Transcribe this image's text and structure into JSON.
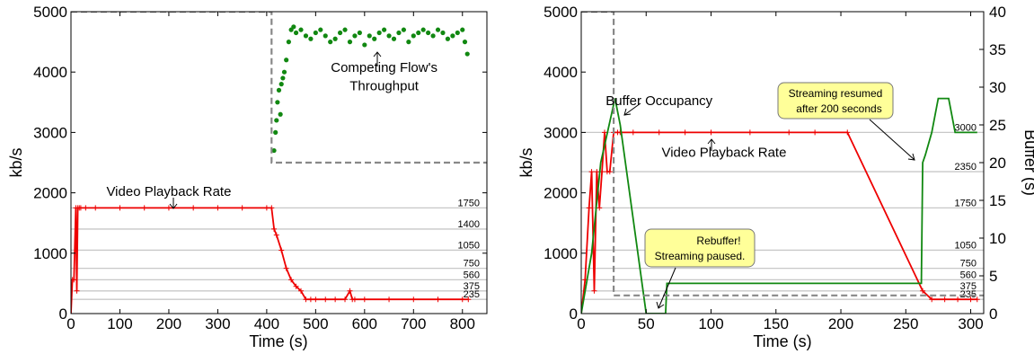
{
  "chart_data": [
    {
      "type": "line",
      "xlabel": "Time (s)",
      "ylabel": "kb/s",
      "xlim": [
        0,
        850
      ],
      "ylim": [
        0,
        5000
      ],
      "xticks": [
        0,
        100,
        200,
        300,
        400,
        500,
        600,
        700,
        800
      ],
      "yticks": [
        0,
        1000,
        2000,
        3000,
        4000,
        5000
      ],
      "rate_levels": [
        235,
        375,
        560,
        750,
        1050,
        1400,
        1750
      ],
      "rate_level_labels": [
        "235",
        "375",
        "560",
        "750",
        "1050",
        "1400",
        "1750"
      ],
      "grid": false,
      "series": [
        {
          "role": "video-playback-rate",
          "color": "#ee0000",
          "marker": "plus",
          "x": [
            0,
            3,
            6,
            10,
            12,
            14,
            17,
            20,
            30,
            50,
            100,
            150,
            200,
            250,
            300,
            350,
            400,
            410,
            415,
            420,
            430,
            440,
            450,
            460,
            470,
            480,
            490,
            500,
            520,
            540,
            560,
            570,
            575,
            580,
            600,
            650,
            700,
            750,
            800,
            812
          ],
          "values": [
            0,
            560,
            560,
            1750,
            375,
            1750,
            1750,
            1750,
            1750,
            1750,
            1750,
            1750,
            1750,
            1750,
            1750,
            1750,
            1750,
            1750,
            1400,
            1300,
            1050,
            750,
            560,
            450,
            375,
            235,
            235,
            235,
            235,
            235,
            235,
            375,
            235,
            235,
            235,
            235,
            235,
            235,
            235,
            235
          ]
        },
        {
          "role": "competing-flow-throughput",
          "color": "#118811",
          "marker": "dot",
          "x": [
            415,
            418,
            420,
            422,
            425,
            428,
            430,
            433,
            436,
            440,
            445,
            450,
            455,
            460,
            470,
            480,
            490,
            500,
            510,
            520,
            530,
            540,
            550,
            560,
            570,
            580,
            590,
            600,
            610,
            620,
            630,
            640,
            650,
            660,
            670,
            680,
            690,
            700,
            710,
            720,
            730,
            740,
            750,
            760,
            770,
            780,
            790,
            800,
            805,
            810
          ],
          "values": [
            2700,
            3000,
            3200,
            3500,
            3700,
            3300,
            3800,
            3900,
            4000,
            4200,
            4500,
            4700,
            4750,
            4650,
            4700,
            4600,
            4550,
            4650,
            4700,
            4600,
            4500,
            4550,
            4650,
            4700,
            4500,
            4600,
            4650,
            4450,
            4600,
            4550,
            4650,
            4700,
            4600,
            4550,
            4650,
            4700,
            4500,
            4600,
            4650,
            4700,
            4650,
            4600,
            4700,
            4650,
            4550,
            4600,
            4650,
            4700,
            4500,
            4300
          ]
        },
        {
          "role": "reference-dashed",
          "color": "#888888",
          "style": "dashed",
          "x": [
            0,
            410,
            410,
            850
          ],
          "values": [
            5000,
            5000,
            2500,
            2500
          ]
        }
      ],
      "annotations": [
        {
          "text": "Video Playback Rate",
          "x": 200,
          "y": 1950
        },
        {
          "text": "Competing Flow's",
          "x": 640,
          "y": 4000
        },
        {
          "text": "Throughput",
          "x": 640,
          "y": 3700
        }
      ]
    },
    {
      "type": "line",
      "xlabel": "Time (s)",
      "ylabel": "kb/s",
      "y2label": "Buffer (s)",
      "xlim": [
        0,
        310
      ],
      "ylim": [
        0,
        5000
      ],
      "y2lim": [
        0,
        40
      ],
      "xticks": [
        0,
        50,
        100,
        150,
        200,
        250,
        300
      ],
      "yticks": [
        0,
        1000,
        2000,
        3000,
        4000,
        5000
      ],
      "y2ticks": [
        0,
        5,
        10,
        15,
        20,
        25,
        30,
        35,
        40
      ],
      "rate_levels": [
        235,
        375,
        560,
        750,
        1050,
        1750,
        2350,
        3000
      ],
      "rate_level_labels": [
        "235",
        "375",
        "560",
        "750",
        "1050",
        "1750",
        "2350",
        "3000"
      ],
      "grid": false,
      "series": [
        {
          "role": "video-playback-rate",
          "color": "#ee0000",
          "marker": "plus",
          "axis": "left",
          "x": [
            0,
            3,
            6,
            8,
            10,
            12,
            14,
            16,
            18,
            20,
            22,
            25,
            28,
            30,
            40,
            60,
            80,
            100,
            130,
            160,
            180,
            205,
            263,
            270,
            280,
            290,
            300,
            305
          ],
          "values": [
            0,
            560,
            1750,
            2350,
            375,
            2350,
            1750,
            2350,
            3000,
            2350,
            2350,
            3000,
            3000,
            3000,
            3000,
            3000,
            3000,
            3000,
            3000,
            3000,
            3000,
            3000,
            375,
            235,
            235,
            235,
            235,
            235
          ]
        },
        {
          "role": "buffer-occupancy",
          "color": "#118811",
          "axis": "right",
          "x": [
            0,
            8,
            15,
            26,
            30,
            50,
            52,
            65,
            66,
            67,
            120,
            200,
            262,
            263,
            265,
            270,
            275,
            278,
            283,
            288,
            305
          ],
          "values": [
            0,
            8,
            20,
            28.5,
            25,
            0,
            0,
            0,
            4,
            4,
            4,
            4,
            4,
            20,
            21,
            24,
            28.5,
            28.5,
            28.5,
            24,
            24
          ]
        },
        {
          "role": "reference-dashed",
          "color": "#888888",
          "style": "dashed",
          "axis": "left",
          "x": [
            0,
            25,
            25,
            310
          ],
          "values": [
            5000,
            5000,
            300,
            300
          ]
        }
      ],
      "annotations": [
        {
          "text": "Buffer Occupancy",
          "x": 60,
          "y": 3450
        },
        {
          "text": "Video Playback Rate",
          "x": 110,
          "y": 2600
        }
      ],
      "callouts": [
        {
          "lines": [
            "Streaming resumed",
            "after 200 seconds"
          ],
          "x": 215,
          "y": 3500
        },
        {
          "lines": [
            "Rebuffer!",
            "Streaming paused."
          ],
          "x": 85,
          "y": 900
        }
      ]
    }
  ]
}
